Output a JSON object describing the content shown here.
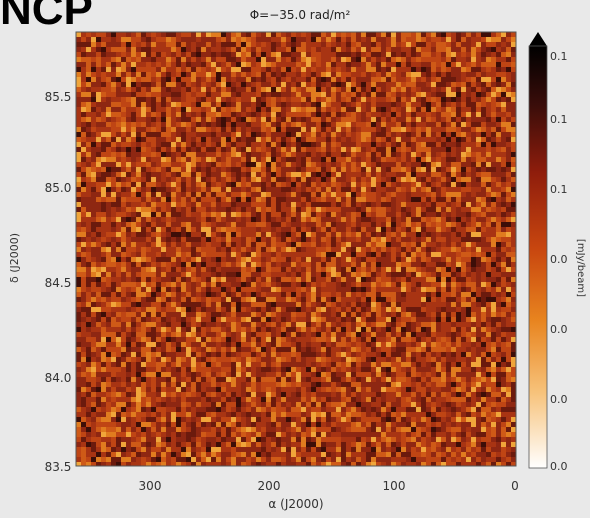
{
  "panel_label": "NCP",
  "chart_data": {
    "type": "heatmap",
    "title": "Φ=−35.0 rad/m²",
    "xlabel": "α (J2000)",
    "ylabel": "δ (J2000)",
    "xlim": [
      360,
      0
    ],
    "ylim": [
      83.5,
      85.8
    ],
    "xticks": [
      "300",
      "200",
      "100",
      "0"
    ],
    "yticks": [
      "85.5",
      "85.0",
      "84.5",
      "84.0",
      "83.5"
    ],
    "colorbar": {
      "label": "[mJy/beam]",
      "ticks": [
        "0.1",
        "0.1",
        "0.1",
        "0.0",
        "0.0",
        "0.0",
        "0.0"
      ],
      "colormap": [
        "#ffffff",
        "#f7c27a",
        "#e8841f",
        "#c8460f",
        "#8f1d0c",
        "#3a0d0a",
        "#000000"
      ]
    },
    "map_colors": [
      "#6b1a0d",
      "#8e2712",
      "#a83413",
      "#bf4514",
      "#cf5a17",
      "#e07c1f",
      "#f0a53a",
      "#3d0e08"
    ],
    "map_weights": [
      14,
      20,
      20,
      16,
      12,
      9,
      5,
      4
    ]
  }
}
